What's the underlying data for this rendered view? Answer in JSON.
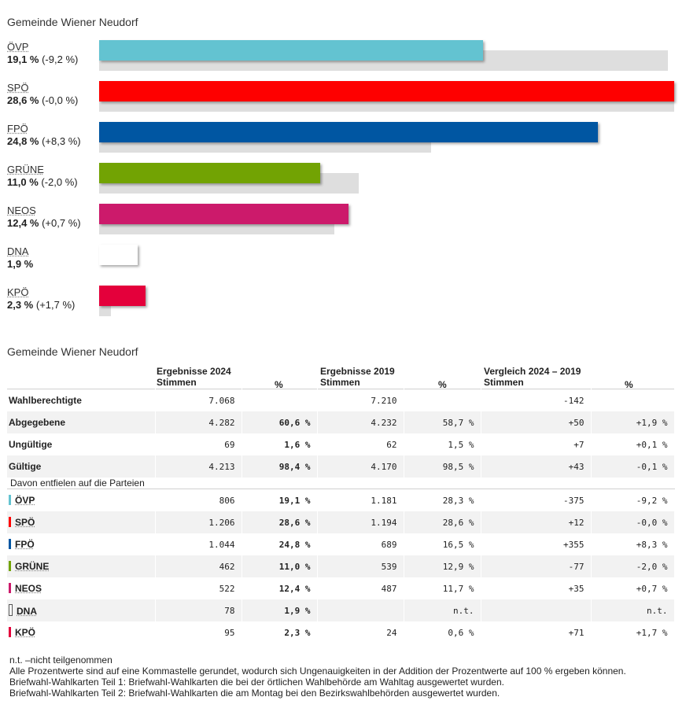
{
  "chart_data": {
    "type": "bar",
    "title": "Gemeinde Wiener Neudorf",
    "xlim": [
      0,
      28.6
    ],
    "series": [
      {
        "name": "ÖVP",
        "value": 19.1,
        "value_label": "19,1 %",
        "change_label": "(-9,2 %)",
        "previous": 28.3,
        "color": "#63c3d1"
      },
      {
        "name": "SPÖ",
        "value": 28.6,
        "value_label": "28,6 %",
        "change_label": "(-0,0 %)",
        "previous": 28.6,
        "color": "#fe0000"
      },
      {
        "name": "FPÖ",
        "value": 24.8,
        "value_label": "24,8 %",
        "change_label": "(+8,3 %)",
        "previous": 16.5,
        "color": "#0056a2"
      },
      {
        "name": "GRÜNE",
        "value": 11.0,
        "value_label": "11,0 %",
        "change_label": "(-2,0 %)",
        "previous": 12.9,
        "color": "#72a303"
      },
      {
        "name": "NEOS",
        "value": 12.4,
        "value_label": "12,4 %",
        "change_label": "(+0,7 %)",
        "previous": 11.7,
        "color": "#cc1a6b"
      },
      {
        "name": "DNA",
        "value": 1.9,
        "value_label": "1,9 %",
        "change_label": "",
        "previous": null,
        "color": "#ffffff"
      },
      {
        "name": "KPÖ",
        "value": 2.3,
        "value_label": "2,3 %",
        "change_label": "(+1,7 %)",
        "previous": 0.6,
        "color": "#e4003b"
      }
    ]
  },
  "table": {
    "title": "Gemeinde Wiener Neudorf",
    "headers": {
      "g2024": "Ergebnisse 2024",
      "g2019": "Ergebnisse 2019",
      "gcmp": "Vergleich 2024 – 2019",
      "stimmen": "Stimmen",
      "pct": "%"
    },
    "rows": [
      {
        "label": "Wahlberechtigte",
        "v24": "7.068",
        "p24": "",
        "v19": "7.210",
        "p19": "",
        "d": "-142",
        "dp": ""
      },
      {
        "label": "Abgegebene",
        "v24": "4.282",
        "p24": "60,6 %",
        "v19": "4.232",
        "p19": "58,7 %",
        "d": "+50",
        "dp": "+1,9 %"
      },
      {
        "label": "Ungültige",
        "v24": "69",
        "p24": "1,6 %",
        "v19": "62",
        "p19": "1,5 %",
        "d": "+7",
        "dp": "+0,1 %"
      },
      {
        "label": "Gültige",
        "v24": "4.213",
        "p24": "98,4 %",
        "v19": "4.170",
        "p19": "98,5 %",
        "d": "+43",
        "dp": "-0,1 %"
      }
    ],
    "subheader": "Davon entfielen auf die Parteien",
    "party_rows": [
      {
        "label": "ÖVP",
        "color": "#63c3d1",
        "v24": "806",
        "p24": "19,1 %",
        "v19": "1.181",
        "p19": "28,3 %",
        "d": "-375",
        "dp": "-9,2 %"
      },
      {
        "label": "SPÖ",
        "color": "#fe0000",
        "v24": "1.206",
        "p24": "28,6 %",
        "v19": "1.194",
        "p19": "28,6 %",
        "d": "+12",
        "dp": "-0,0 %"
      },
      {
        "label": "FPÖ",
        "color": "#0056a2",
        "v24": "1.044",
        "p24": "24,8 %",
        "v19": "689",
        "p19": "16,5 %",
        "d": "+355",
        "dp": "+8,3 %"
      },
      {
        "label": "GRÜNE",
        "color": "#72a303",
        "v24": "462",
        "p24": "11,0 %",
        "v19": "539",
        "p19": "12,9 %",
        "d": "-77",
        "dp": "-2,0 %"
      },
      {
        "label": "NEOS",
        "color": "#cc1a6b",
        "v24": "522",
        "p24": "12,4 %",
        "v19": "487",
        "p19": "11,7 %",
        "d": "+35",
        "dp": "+0,7 %"
      },
      {
        "label": "DNA",
        "color": "#ffffff",
        "v24": "78",
        "p24": "1,9 %",
        "v19": "",
        "p19": "n.t.",
        "d": "",
        "dp": "n.t."
      },
      {
        "label": "KPÖ",
        "color": "#e4003b",
        "v24": "95",
        "p24": "2,3 %",
        "v19": "24",
        "p19": "0,6 %",
        "d": "+71",
        "dp": "+1,7 %"
      }
    ]
  },
  "notes": [
    "n.t. –nicht teilgenommen",
    "Alle Prozentwerte sind auf eine Kommastelle gerundet, wodurch sich Ungenauigkeiten in der Addition der Prozentwerte auf 100 % ergeben können.",
    "Briefwahl-Wahlkarten Teil 1: Briefwahl-Wahlkarten die bei der örtlichen Wahlbehörde am Wahltag ausgewertet wurden.",
    "Briefwahl-Wahlkarten Teil 2: Briefwahl-Wahlkarten die am Montag bei den Bezirkswahlbehörden ausgewertet wurden."
  ]
}
